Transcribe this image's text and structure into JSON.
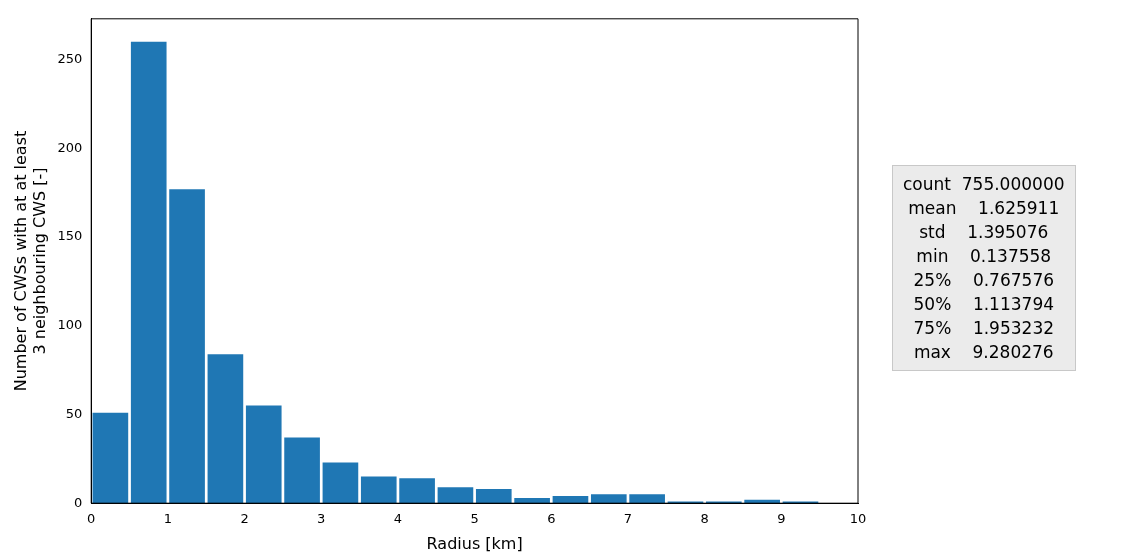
{
  "chart_data": {
    "type": "histogram",
    "xlabel": "Radius [km]",
    "ylabel": "Number of CWSs with at at least\n3 neighbouring CWS [-]",
    "bins": [
      0,
      0.5,
      1,
      1.5,
      2,
      2.5,
      3,
      3.5,
      4,
      4.5,
      5,
      5.5,
      6,
      6.5,
      7,
      7.5,
      8,
      8.5,
      9,
      9.5,
      10
    ],
    "values": [
      51,
      260,
      177,
      84,
      55,
      37,
      23,
      15,
      14,
      9,
      8,
      3,
      4,
      5,
      5,
      1,
      1,
      2,
      1,
      0
    ],
    "color": "#1f77b4",
    "xlim": [
      0,
      10
    ],
    "xticks": [
      0,
      1,
      2,
      3,
      4,
      5,
      6,
      7,
      8,
      9,
      10
    ],
    "ylim": [
      0,
      273
    ],
    "yticks": [
      0,
      50,
      100,
      150,
      200,
      250
    ],
    "grid": false,
    "annotations": [
      "count  755.000000",
      "mean    1.625911",
      "std    1.395076",
      "min    0.137558",
      "25%    0.767576",
      "50%    1.113794",
      "75%    1.953232",
      "max    9.280276"
    ]
  }
}
